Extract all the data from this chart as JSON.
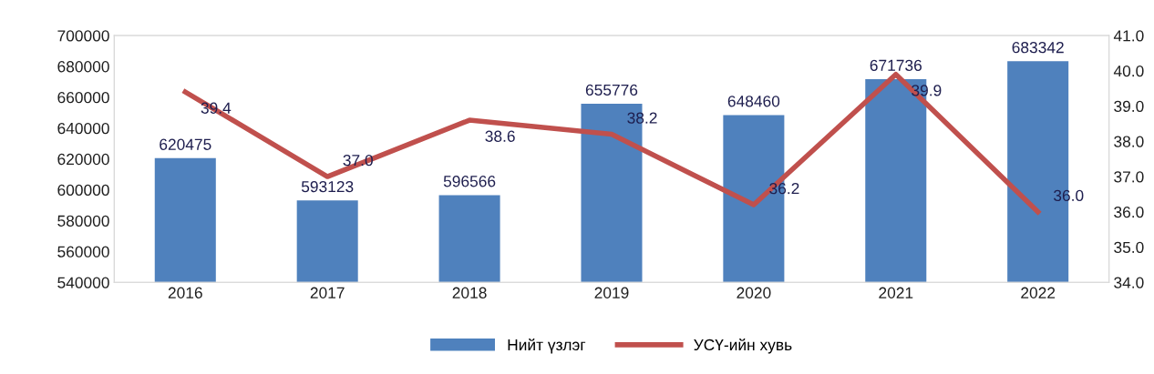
{
  "chart_data": {
    "type": "bar",
    "categories": [
      "2016",
      "2017",
      "2018",
      "2019",
      "2020",
      "2021",
      "2022"
    ],
    "series": [
      {
        "name": "Нийт үзлэг",
        "color": "#4f81bd",
        "values": [
          620475,
          593123,
          596566,
          655776,
          648460,
          671736,
          683342
        ]
      },
      {
        "name": "УСҮ-ийн хувь",
        "type": "line",
        "axis": "y2",
        "color": "#c0504d",
        "values": [
          39.4,
          37.0,
          38.6,
          38.2,
          36.2,
          39.9,
          36.0
        ],
        "value_labels": [
          "39.4",
          "37.0",
          "38.6",
          "38.2",
          "36.2",
          "39.9",
          "36.0"
        ]
      }
    ],
    "ylim": [
      540000,
      700000
    ],
    "yticks": [
      540000,
      560000,
      580000,
      600000,
      620000,
      640000,
      660000,
      680000,
      700000
    ],
    "y2lim": [
      34.0,
      41.0
    ],
    "y2ticks": [
      {
        "value": 34.0,
        "label": "34.0"
      },
      {
        "value": 35.0,
        "label": "35.0"
      },
      {
        "value": 36.0,
        "label": "36.0"
      },
      {
        "value": 37.0,
        "label": "37.0"
      },
      {
        "value": 38.0,
        "label": "38.0"
      },
      {
        "value": 39.0,
        "label": "39.0"
      },
      {
        "value": 40.0,
        "label": "40.0"
      },
      {
        "value": 41.0,
        "label": "41.0"
      }
    ],
    "data_labels": true,
    "legend": "bottom",
    "grid": false,
    "marker": "none",
    "line_style": "solid"
  }
}
